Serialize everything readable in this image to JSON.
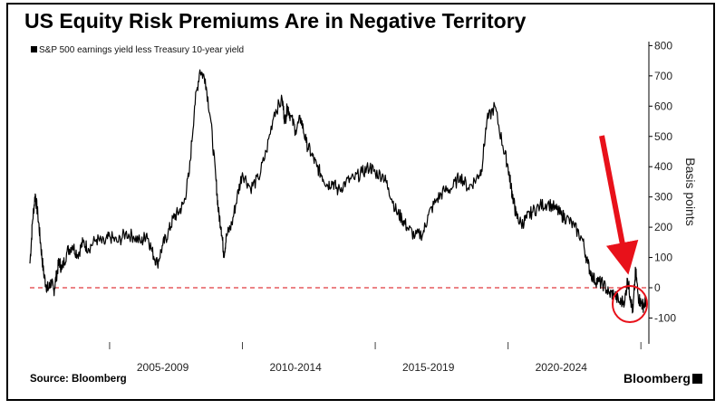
{
  "title": "US Equity Risk Premiums Are in Negative Territory",
  "source": "Source: Bloomberg",
  "brand": "Bloomberg",
  "colors": {
    "line": "#000000",
    "zero_line": "#e0393e",
    "highlight": "#e8111a"
  },
  "chart_data": {
    "type": "line",
    "legend": "S&P 500 earnings yield less Treasury 10-year yield",
    "ylabel": "Basis points",
    "ylim": [
      -180,
      800
    ],
    "yticks": [
      800,
      700,
      600,
      500,
      400,
      300,
      200,
      100,
      0,
      -100
    ],
    "xlim": [
      2002.0,
      2025.3
    ],
    "xtick_labels": [
      "2005-2009",
      "2010-2014",
      "2015-2019",
      "2020-2024"
    ],
    "xtick_centers": [
      2007.0,
      2012.0,
      2017.0,
      2022.0
    ],
    "reference_line": 0,
    "series": [
      {
        "name": "S&P 500 earnings yield less Treasury 10-year yield",
        "x": [
          2002.0,
          2002.1,
          2002.2,
          2002.3,
          2002.4,
          2002.5,
          2002.6,
          2002.7,
          2002.8,
          2002.9,
          2003.0,
          2003.1,
          2003.2,
          2003.4,
          2003.6,
          2003.8,
          2004.0,
          2004.2,
          2004.5,
          2004.8,
          2005.0,
          2005.3,
          2005.6,
          2005.9,
          2006.2,
          2006.4,
          2006.6,
          2006.8,
          2007.0,
          2007.2,
          2007.4,
          2007.6,
          2007.8,
          2008.0,
          2008.2,
          2008.4,
          2008.6,
          2008.8,
          2009.0,
          2009.1,
          2009.2,
          2009.3,
          2009.4,
          2009.6,
          2009.8,
          2010.0,
          2010.3,
          2010.6,
          2010.9,
          2011.2,
          2011.5,
          2011.6,
          2011.7,
          2011.8,
          2012.0,
          2012.2,
          2012.4,
          2012.6,
          2012.8,
          2013.0,
          2013.2,
          2013.4,
          2013.6,
          2013.9,
          2014.2,
          2014.5,
          2014.8,
          2015.0,
          2015.3,
          2015.5,
          2015.8,
          2016.0,
          2016.2,
          2016.5,
          2016.8,
          2017.0,
          2017.3,
          2017.6,
          2017.9,
          2018.2,
          2018.5,
          2018.8,
          2019.0,
          2019.2,
          2019.5,
          2019.8,
          2020.0,
          2020.1,
          2020.2,
          2020.3,
          2020.5,
          2020.7,
          2020.9,
          2021.2,
          2021.5,
          2021.8,
          2022.0,
          2022.2,
          2022.5,
          2022.8,
          2023.0,
          2023.2,
          2023.4,
          2023.6,
          2023.8,
          2024.0,
          2024.2,
          2024.4,
          2024.5,
          2024.6,
          2024.7,
          2024.8,
          2024.9,
          2025.0,
          2025.1,
          2025.2
        ],
        "values": [
          80,
          220,
          310,
          240,
          150,
          60,
          10,
          -5,
          20,
          -10,
          40,
          90,
          60,
          120,
          140,
          110,
          150,
          130,
          160,
          145,
          170,
          150,
          180,
          170,
          150,
          180,
          120,
          80,
          140,
          180,
          230,
          250,
          280,
          380,
          600,
          720,
          690,
          560,
          360,
          250,
          200,
          110,
          170,
          210,
          300,
          380,
          330,
          360,
          450,
          580,
          620,
          550,
          600,
          570,
          520,
          560,
          480,
          440,
          400,
          370,
          340,
          350,
          320,
          350,
          360,
          380,
          400,
          380,
          370,
          330,
          250,
          230,
          200,
          170,
          180,
          240,
          290,
          320,
          330,
          370,
          330,
          360,
          390,
          550,
          600,
          470,
          400,
          340,
          290,
          240,
          210,
          230,
          250,
          270,
          280,
          260,
          240,
          230,
          200,
          160,
          80,
          30,
          20,
          10,
          -20,
          -20,
          -50,
          -40,
          30,
          -30,
          -80,
          60,
          -30,
          -50,
          -60,
          -40
        ]
      }
    ],
    "annotation": "circle and arrow highlighting the negative readings around 2024-2025"
  }
}
